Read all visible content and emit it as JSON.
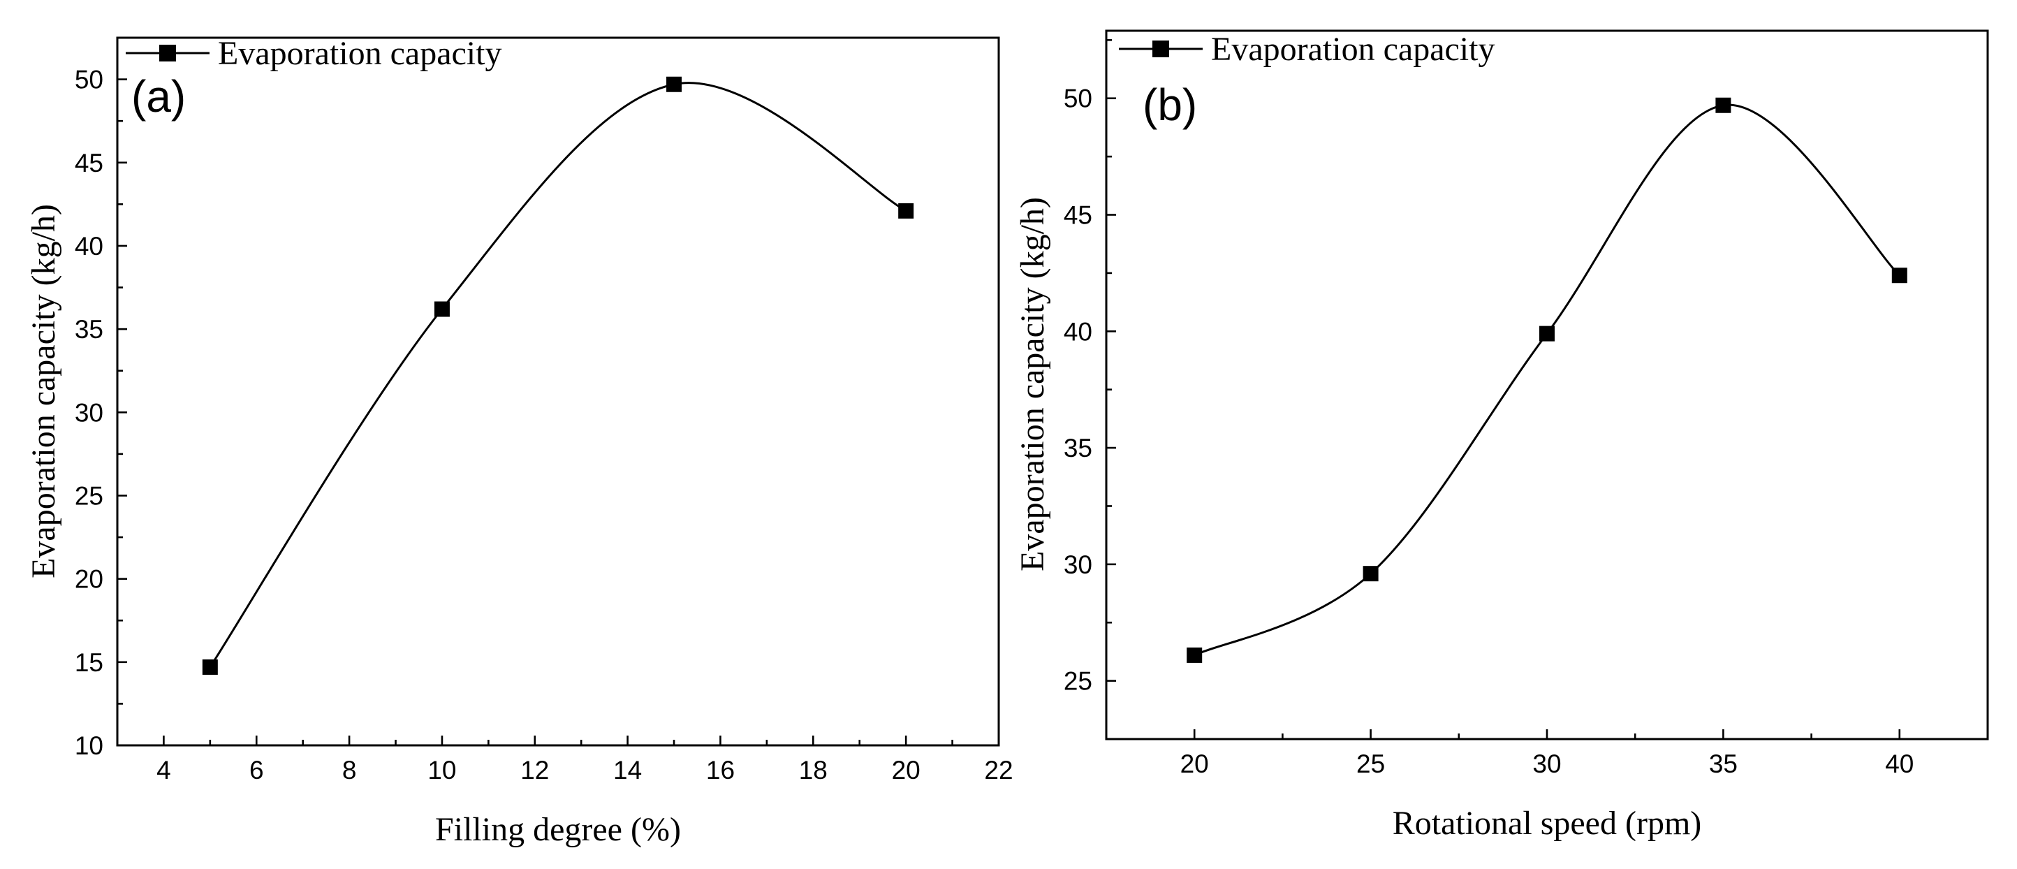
{
  "chart_data": [
    {
      "type": "line",
      "panel": "(a)",
      "title": "",
      "xlabel": "Filling degree (%)",
      "ylabel": "Evaporation capacity (kg/h)",
      "xlim": [
        3,
        22
      ],
      "ylim": [
        10,
        52.5
      ],
      "xticks": [
        4,
        6,
        8,
        10,
        12,
        14,
        16,
        18,
        20,
        22
      ],
      "yticks": [
        10,
        15,
        20,
        25,
        30,
        35,
        40,
        45,
        50
      ],
      "legend": "top-left",
      "series": [
        {
          "name": "Evaporation capacity",
          "x": [
            5,
            10,
            15,
            20
          ],
          "values": [
            14.7,
            36.2,
            49.7,
            42.1
          ]
        }
      ]
    },
    {
      "type": "line",
      "panel": "(b)",
      "title": "",
      "xlabel": "Rotational speed (rpm)",
      "ylabel": "Evaporation capacity (kg/h)",
      "xlim": [
        17.5,
        42.5
      ],
      "ylim": [
        22.5,
        52.9
      ],
      "xticks": [
        20,
        25,
        30,
        35,
        40
      ],
      "yticks": [
        25,
        30,
        35,
        40,
        45,
        50
      ],
      "legend": "top-left",
      "series": [
        {
          "name": "Evaporation capacity",
          "x": [
            20,
            25,
            30,
            35,
            40
          ],
          "values": [
            26.1,
            29.6,
            39.9,
            49.7,
            42.4
          ]
        }
      ]
    }
  ]
}
